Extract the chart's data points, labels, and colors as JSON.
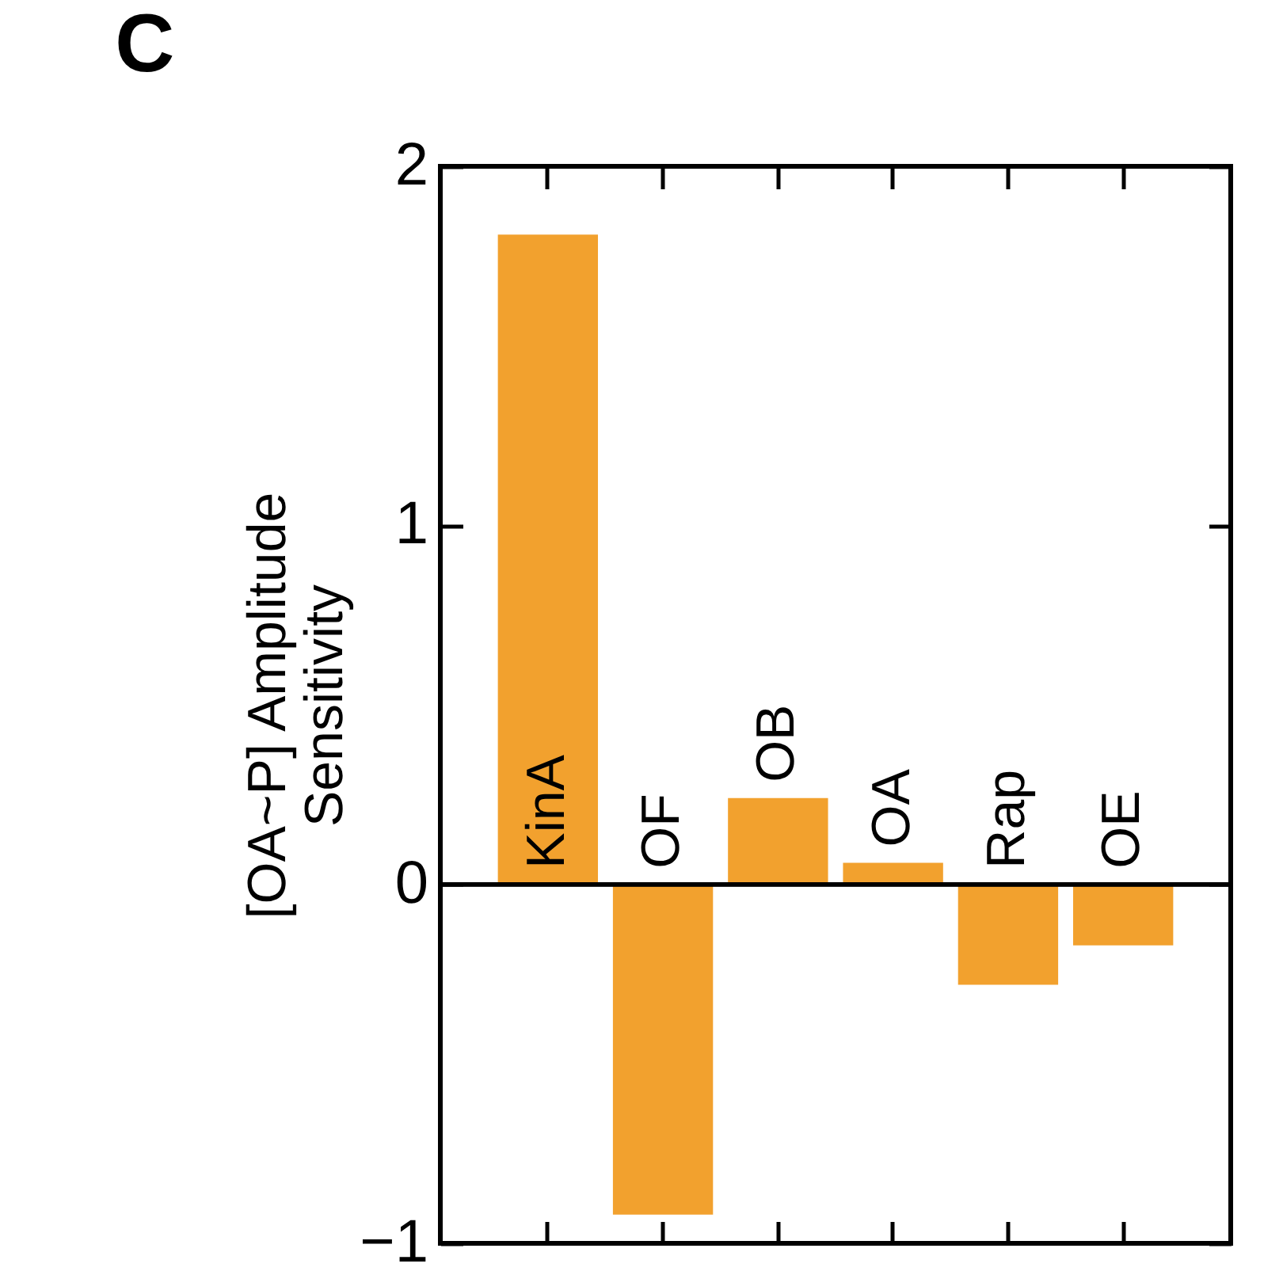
{
  "chart_data": {
    "type": "bar",
    "title": "C",
    "ylabel": "[OA~P] Amplitude\nSensitivity",
    "categories": [
      "KinA",
      "OF",
      "OB",
      "OA",
      "Rap",
      "OE"
    ],
    "values": [
      1.81,
      -0.92,
      0.24,
      0.06,
      -0.28,
      -0.17
    ],
    "color": "#f2a12e",
    "ylim": [
      -1,
      2
    ],
    "yticks": [
      -1,
      0,
      1,
      2
    ],
    "grid": false
  }
}
